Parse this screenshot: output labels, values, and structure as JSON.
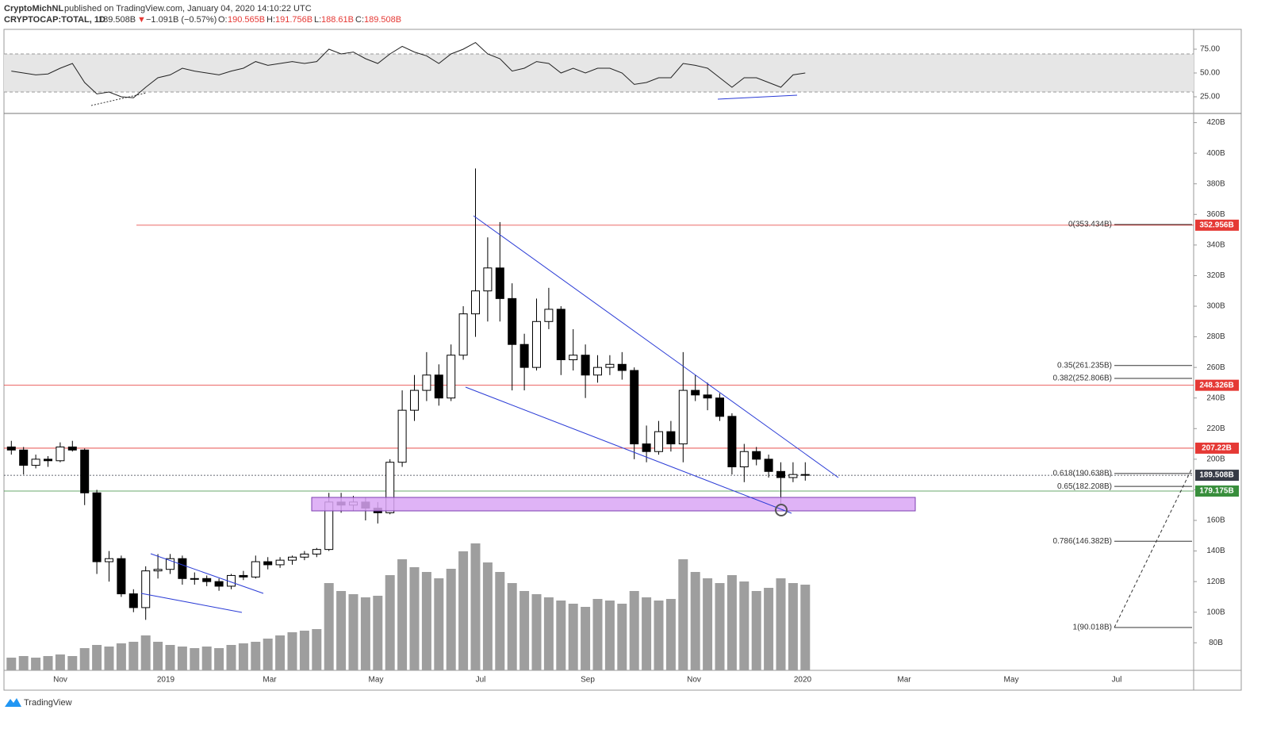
{
  "header": {
    "author": "CryptoMichNL",
    "published": "published on TradingView.com, January 04, 2020 14:10:22 UTC",
    "symbol": "CRYPTOCAP:TOTAL, 1D",
    "last": "189.508B",
    "arrow": "▼",
    "change": "−1.091B (−0.57%)",
    "o_key": "O:",
    "o": "190.565B",
    "h_key": "H:",
    "h": "191.756B",
    "l_key": "L:",
    "l": "188.61B",
    "c_key": "C:",
    "c": "189.508B"
  },
  "footer": {
    "brand": "TradingView"
  },
  "chart_data": {
    "type": "candlestick",
    "time_labels": [
      "Nov",
      "2019",
      "Mar",
      "May",
      "Jul",
      "Sep",
      "Nov",
      "2020",
      "Mar",
      "May",
      "Jul"
    ],
    "ohlc": [
      [
        208,
        212,
        203,
        206
      ],
      [
        206,
        208,
        190,
        196
      ],
      [
        196,
        203,
        194,
        200
      ],
      [
        200,
        202,
        195,
        199
      ],
      [
        199,
        211,
        198,
        208
      ],
      [
        208,
        212,
        205,
        206
      ],
      [
        206,
        207,
        170,
        178
      ],
      [
        178,
        180,
        125,
        133
      ],
      [
        133,
        140,
        120,
        135
      ],
      [
        135,
        137,
        110,
        112
      ],
      [
        112,
        115,
        100,
        103
      ],
      [
        103,
        130,
        95,
        127
      ],
      [
        127,
        138,
        122,
        128
      ],
      [
        128,
        138,
        125,
        135
      ],
      [
        135,
        137,
        118,
        122
      ],
      [
        122,
        126,
        118,
        122
      ],
      [
        122,
        124,
        117,
        120
      ],
      [
        120,
        122,
        114,
        117
      ],
      [
        117,
        125,
        115,
        124
      ],
      [
        124,
        127,
        121,
        123
      ],
      [
        123,
        137,
        122,
        133
      ],
      [
        133,
        136,
        128,
        131
      ],
      [
        131,
        136,
        129,
        134
      ],
      [
        134,
        137,
        131,
        136
      ],
      [
        136,
        140,
        134,
        138
      ],
      [
        138,
        142,
        136,
        141
      ],
      [
        141,
        178,
        140,
        172
      ],
      [
        172,
        178,
        165,
        170
      ],
      [
        170,
        176,
        166,
        172
      ],
      [
        172,
        175,
        160,
        168
      ],
      [
        168,
        172,
        158,
        165
      ],
      [
        165,
        200,
        164,
        198
      ],
      [
        198,
        245,
        195,
        232
      ],
      [
        232,
        255,
        225,
        245
      ],
      [
        245,
        270,
        238,
        255
      ],
      [
        255,
        262,
        235,
        240
      ],
      [
        240,
        275,
        238,
        268
      ],
      [
        268,
        300,
        265,
        295
      ],
      [
        295,
        390,
        280,
        310
      ],
      [
        310,
        345,
        290,
        325
      ],
      [
        325,
        355,
        290,
        305
      ],
      [
        305,
        315,
        245,
        275
      ],
      [
        275,
        282,
        245,
        260
      ],
      [
        260,
        305,
        258,
        290
      ],
      [
        290,
        312,
        285,
        298
      ],
      [
        298,
        300,
        255,
        265
      ],
      [
        265,
        285,
        258,
        268
      ],
      [
        268,
        275,
        240,
        255
      ],
      [
        255,
        268,
        250,
        260
      ],
      [
        260,
        268,
        255,
        262
      ],
      [
        262,
        270,
        252,
        258
      ],
      [
        258,
        260,
        200,
        210
      ],
      [
        210,
        222,
        198,
        205
      ],
      [
        205,
        225,
        203,
        218
      ],
      [
        218,
        225,
        205,
        210
      ],
      [
        210,
        270,
        198,
        245
      ],
      [
        245,
        255,
        238,
        242
      ],
      [
        242,
        250,
        232,
        240
      ],
      [
        240,
        243,
        225,
        228
      ],
      [
        228,
        230,
        190,
        195
      ],
      [
        195,
        210,
        185,
        205
      ],
      [
        205,
        208,
        196,
        200
      ],
      [
        200,
        203,
        188,
        192
      ],
      [
        192,
        198,
        170,
        188
      ],
      [
        188,
        198,
        185,
        190
      ],
      [
        190,
        198,
        186,
        189.508
      ]
    ],
    "volume": [
      8,
      9,
      8,
      9,
      10,
      9,
      14,
      16,
      15,
      17,
      18,
      22,
      18,
      16,
      15,
      14,
      15,
      14,
      16,
      17,
      18,
      20,
      22,
      24,
      25,
      26,
      55,
      50,
      48,
      46,
      47,
      60,
      70,
      65,
      62,
      58,
      64,
      75,
      80,
      68,
      62,
      55,
      50,
      48,
      46,
      44,
      42,
      40,
      45,
      44,
      42,
      50,
      46,
      44,
      45,
      70,
      62,
      58,
      55,
      60,
      56,
      50,
      52,
      58,
      55,
      54
    ],
    "ylim": [
      62,
      426
    ],
    "yticks": [
      {
        "value": 80,
        "label": "80B"
      },
      {
        "value": 100,
        "label": "100B"
      },
      {
        "value": 120,
        "label": "120B"
      },
      {
        "value": 140,
        "label": "140B"
      },
      {
        "value": 160,
        "label": "160B"
      },
      {
        "value": 180,
        "label": "180B"
      },
      {
        "value": 200,
        "label": "200B"
      },
      {
        "value": 220,
        "label": "220B"
      },
      {
        "value": 240,
        "label": "240B"
      },
      {
        "value": 260,
        "label": "260B"
      },
      {
        "value": 280,
        "label": "280B"
      },
      {
        "value": 300,
        "label": "300B"
      },
      {
        "value": 320,
        "label": "320B"
      },
      {
        "value": 340,
        "label": "340B"
      },
      {
        "value": 360,
        "label": "360B"
      },
      {
        "value": 380,
        "label": "380B"
      },
      {
        "value": 400,
        "label": "400B"
      },
      {
        "value": 420,
        "label": "420B"
      }
    ],
    "rsi": [
      52,
      50,
      48,
      49,
      55,
      60,
      40,
      28,
      30,
      25,
      24,
      35,
      45,
      48,
      55,
      52,
      50,
      48,
      52,
      55,
      62,
      58,
      60,
      62,
      60,
      62,
      75,
      70,
      72,
      65,
      60,
      70,
      78,
      72,
      68,
      60,
      70,
      75,
      82,
      70,
      65,
      52,
      55,
      62,
      60,
      50,
      55,
      50,
      55,
      55,
      50,
      38,
      40,
      45,
      45,
      60,
      58,
      55,
      45,
      35,
      45,
      45,
      40,
      35,
      48,
      50
    ],
    "rsi_ylim": [
      7.5,
      95
    ],
    "rsi_band": [
      30,
      70
    ],
    "rsi_yticks": [
      {
        "value": 25,
        "label": "25.00"
      },
      {
        "value": 50,
        "label": "50.00"
      },
      {
        "value": 75,
        "label": "75.00"
      }
    ],
    "price_lines": [
      {
        "value": 352.956,
        "label": "352.956B",
        "color": "#e53935"
      },
      {
        "value": 248.326,
        "label": "248.326B",
        "color": "#e53935"
      },
      {
        "value": 207.22,
        "label": "207.22B",
        "color": "#e53935"
      },
      {
        "value": 189.508,
        "label": "189.508B",
        "color": "#363a45"
      },
      {
        "value": 179.175,
        "label": "179.175B",
        "color": "#388e3c"
      }
    ],
    "fib_levels": [
      {
        "value": 353.434,
        "label": "0(353.434B)"
      },
      {
        "value": 261.235,
        "label": "0.35(261.235B)"
      },
      {
        "value": 252.806,
        "label": "0.382(252.806B)"
      },
      {
        "value": 190.638,
        "label": "0.618(190.638B)"
      },
      {
        "value": 182.208,
        "label": "0.65(182.208B)"
      },
      {
        "value": 146.382,
        "label": "0.786(146.382B)"
      },
      {
        "value": 90.018,
        "label": "1(90.018B)"
      }
    ]
  }
}
